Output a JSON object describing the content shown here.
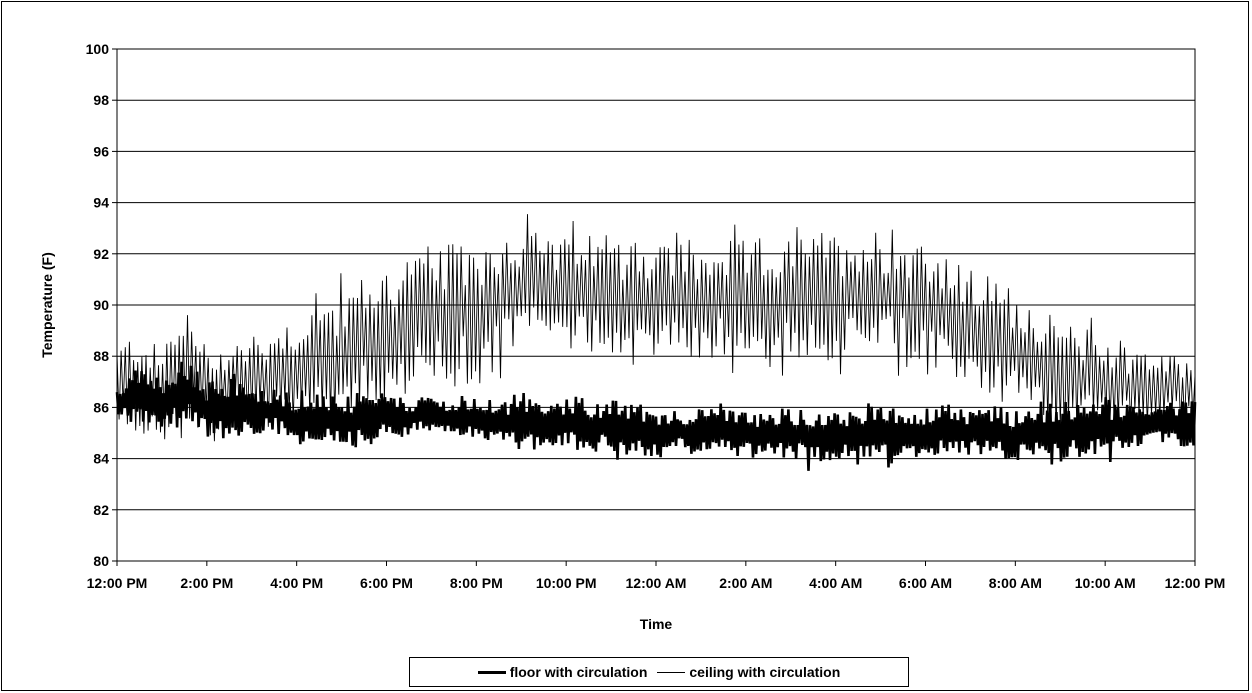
{
  "chart_data": {
    "type": "line",
    "title": "",
    "xlabel": "Time",
    "ylabel": "Temperature (F)",
    "ylim": [
      80,
      100
    ],
    "yticks": [
      80,
      82,
      84,
      86,
      88,
      90,
      92,
      94,
      96,
      98,
      100
    ],
    "xlim_hours": [
      12,
      36
    ],
    "x_ticks": [
      {
        "hour": 12,
        "label": "12:00 PM"
      },
      {
        "hour": 14,
        "label": "2:00 PM"
      },
      {
        "hour": 16,
        "label": "4:00 PM"
      },
      {
        "hour": 18,
        "label": "6:00 PM"
      },
      {
        "hour": 20,
        "label": "8:00 PM"
      },
      {
        "hour": 22,
        "label": "10:00 PM"
      },
      {
        "hour": 24,
        "label": "12:00 AM"
      },
      {
        "hour": 26,
        "label": "2:00 AM"
      },
      {
        "hour": 28,
        "label": "4:00 AM"
      },
      {
        "hour": 30,
        "label": "6:00 AM"
      },
      {
        "hour": 32,
        "label": "8:00 AM"
      },
      {
        "hour": 34,
        "label": "10:00 AM"
      },
      {
        "hour": 36,
        "label": "12:00 PM"
      }
    ],
    "grid": "horizontal",
    "legend_position": "bottom",
    "series": [
      {
        "name": "floor with circulation",
        "line_width": "thick",
        "color": "#000000",
        "hours": [
          12.0,
          12.5,
          13.0,
          13.5,
          14.0,
          14.5,
          15.0,
          15.5,
          16.0,
          16.5,
          17.0,
          17.5,
          18.0,
          18.5,
          19.0,
          19.5,
          20.0,
          20.5,
          21.0,
          21.5,
          22.0,
          22.5,
          23.0,
          23.5,
          24.0,
          24.5,
          25.0,
          25.5,
          26.0,
          26.5,
          27.0,
          27.5,
          28.0,
          28.5,
          29.0,
          29.5,
          30.0,
          30.5,
          31.0,
          31.5,
          32.0,
          32.5,
          33.0,
          33.5,
          34.0,
          34.5,
          35.0,
          35.5,
          36.0
        ],
        "values": [
          86.2,
          86.5,
          86.0,
          86.8,
          85.9,
          86.0,
          85.8,
          85.9,
          85.5,
          85.6,
          85.4,
          85.5,
          85.7,
          85.6,
          85.8,
          85.5,
          85.6,
          85.4,
          85.3,
          85.4,
          85.4,
          85.2,
          85.3,
          85.1,
          85.0,
          85.1,
          85.0,
          85.1,
          84.9,
          85.0,
          85.0,
          84.9,
          84.9,
          85.0,
          84.9,
          85.0,
          85.0,
          85.1,
          85.0,
          85.1,
          84.9,
          85.1,
          85.0,
          85.2,
          85.1,
          85.2,
          85.3,
          85.4,
          85.3
        ],
        "band": [
          1.0,
          1.2,
          1.0,
          1.4,
          1.3,
          1.4,
          1.1,
          1.0,
          1.2,
          1.0,
          1.2,
          1.1,
          1.0,
          0.8,
          0.8,
          0.8,
          0.9,
          1.0,
          1.2,
          1.0,
          1.1,
          1.2,
          1.2,
          1.2,
          1.1,
          1.0,
          1.1,
          1.1,
          1.1,
          1.0,
          1.2,
          1.3,
          1.2,
          1.2,
          1.2,
          1.2,
          1.3,
          1.2,
          1.1,
          1.2,
          1.2,
          1.1,
          1.2,
          1.2,
          1.2,
          1.1,
          0.9,
          1.0,
          1.1
        ]
      },
      {
        "name": "ceiling with circulation",
        "line_width": "thin",
        "color": "#000000",
        "hours": [
          12.0,
          12.5,
          13.0,
          13.5,
          14.0,
          14.5,
          15.0,
          15.5,
          16.0,
          16.5,
          17.0,
          17.5,
          18.0,
          18.5,
          19.0,
          19.5,
          20.0,
          20.5,
          21.0,
          21.5,
          22.0,
          22.5,
          23.0,
          23.5,
          24.0,
          24.5,
          25.0,
          25.5,
          26.0,
          26.5,
          27.0,
          27.5,
          28.0,
          28.5,
          29.0,
          29.5,
          30.0,
          30.5,
          31.0,
          31.5,
          32.0,
          32.5,
          33.0,
          33.5,
          34.0,
          34.5,
          35.0,
          35.5,
          36.0
        ],
        "values": [
          86.8,
          87.0,
          86.5,
          87.5,
          86.5,
          86.8,
          87.0,
          87.2,
          87.5,
          87.8,
          88.0,
          88.5,
          88.8,
          89.2,
          89.5,
          89.6,
          89.8,
          90.2,
          90.8,
          90.6,
          90.4,
          90.5,
          90.3,
          90.3,
          90.2,
          90.2,
          90.0,
          90.2,
          90.2,
          90.2,
          90.2,
          90.4,
          90.3,
          90.5,
          90.4,
          90.3,
          90.0,
          89.5,
          89.0,
          88.8,
          88.3,
          87.8,
          87.3,
          87.2,
          87.0,
          86.8,
          86.8,
          86.7,
          86.6
        ],
        "band": [
          2.0,
          2.5,
          2.0,
          3.2,
          2.2,
          2.4,
          2.0,
          2.4,
          2.5,
          3.0,
          3.0,
          3.2,
          3.3,
          3.4,
          3.4,
          3.3,
          3.3,
          3.2,
          2.8,
          2.6,
          2.6,
          2.8,
          2.6,
          2.7,
          2.7,
          2.8,
          2.6,
          2.7,
          2.8,
          2.9,
          2.8,
          3.0,
          3.0,
          3.0,
          3.1,
          3.0,
          3.0,
          2.8,
          2.8,
          2.8,
          2.7,
          2.5,
          2.5,
          2.3,
          2.2,
          2.0,
          1.8,
          1.6,
          1.6
        ]
      }
    ]
  }
}
